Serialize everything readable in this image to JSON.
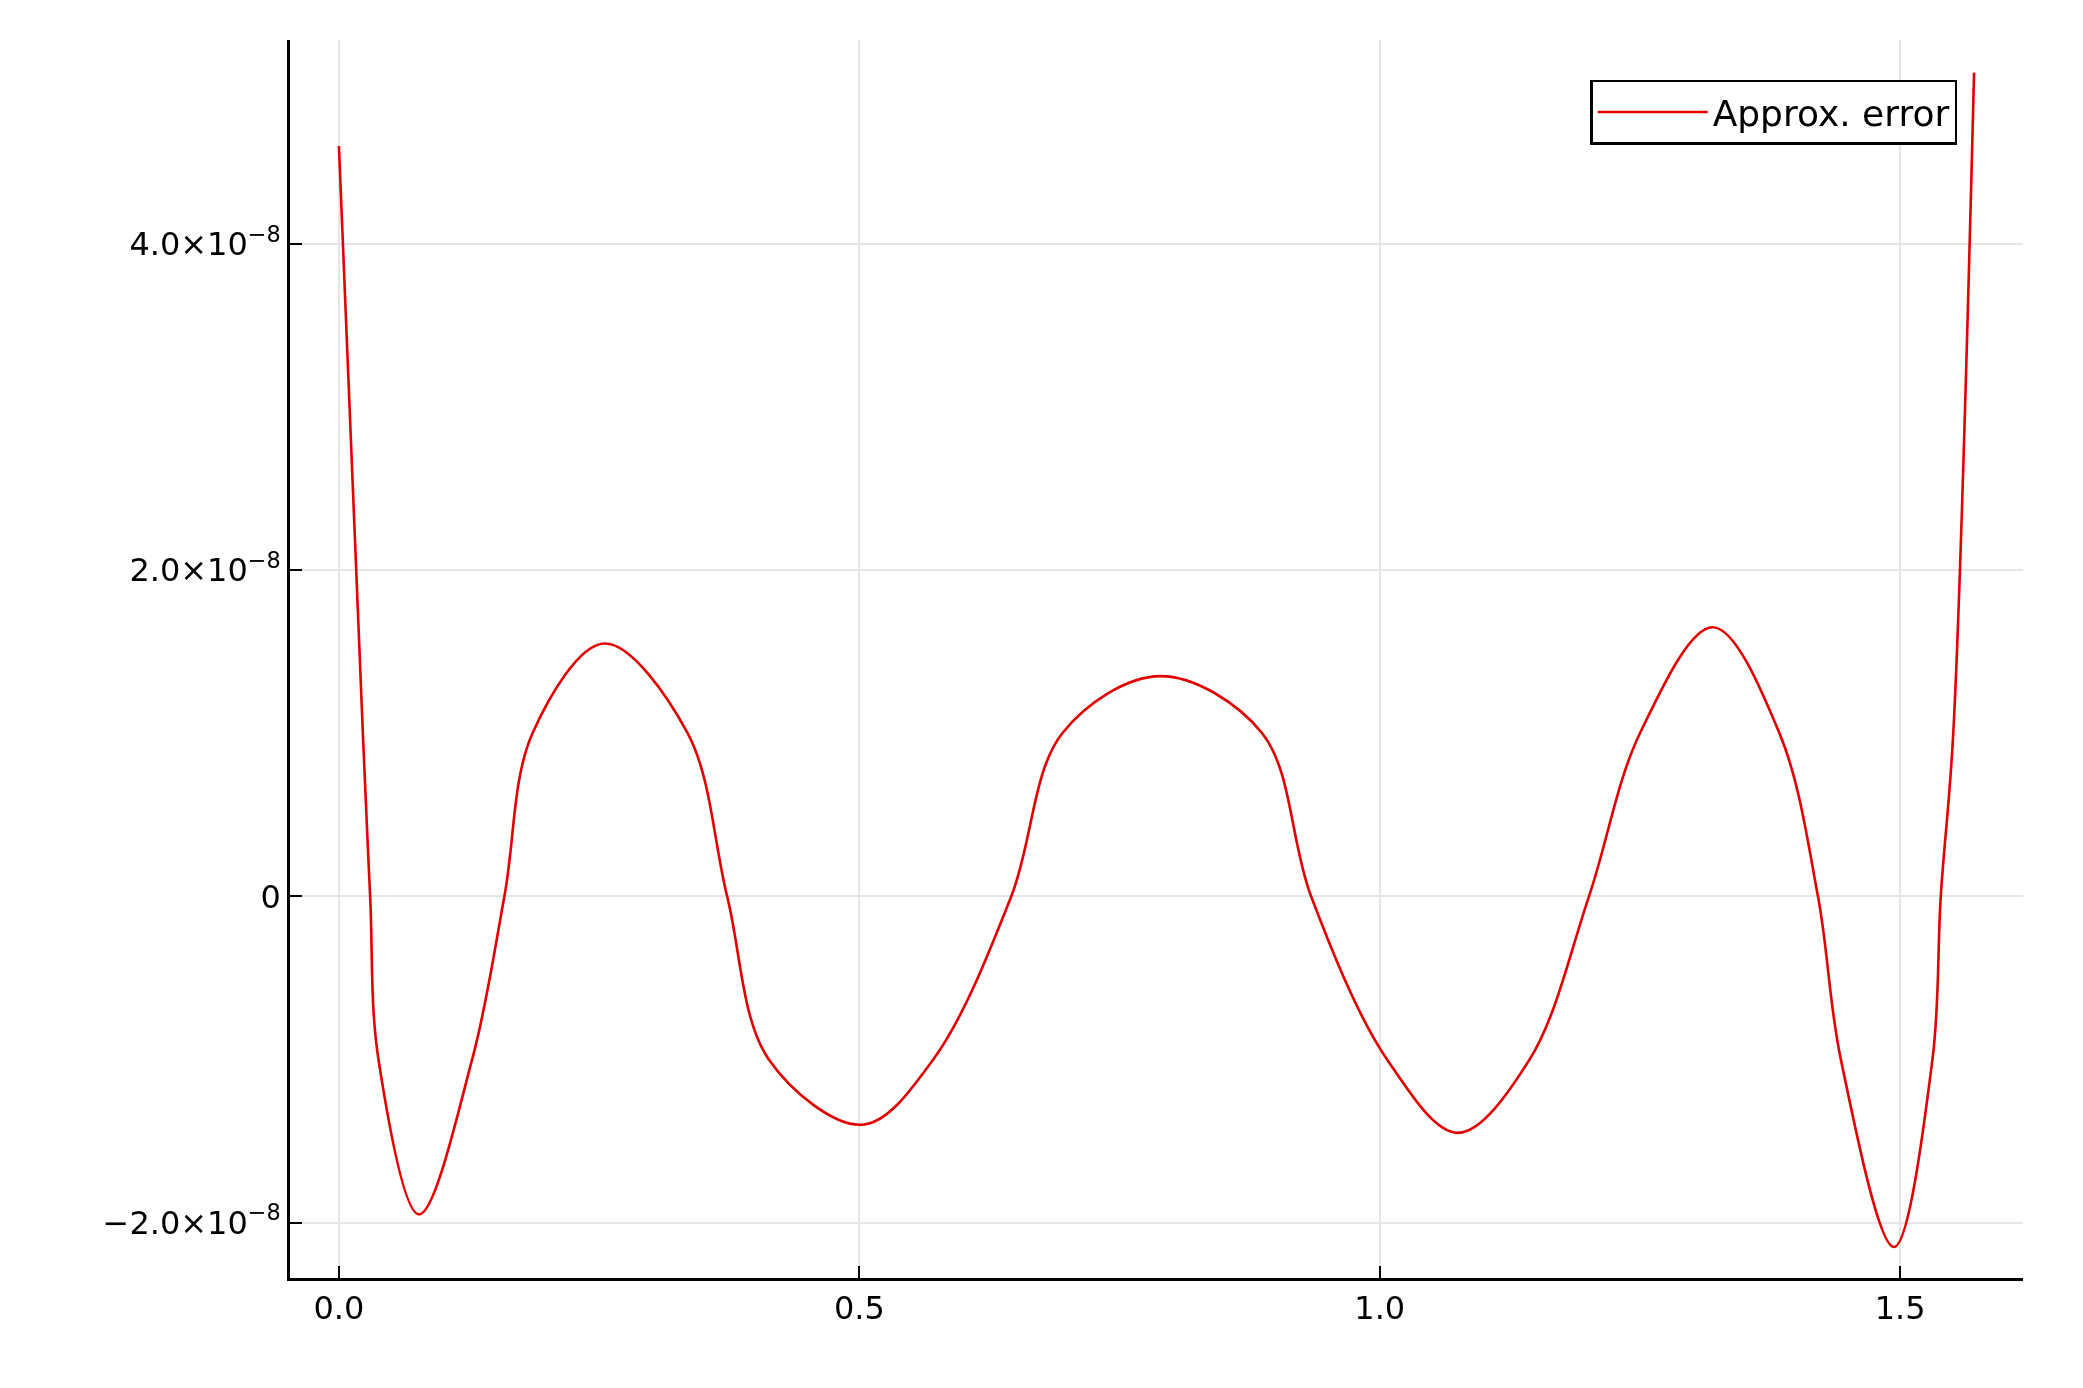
{
  "chart_data": {
    "type": "line",
    "x": [
      0,
      0.023,
      0.03,
      0.038,
      0.077,
      0.128,
      0.159,
      0.186,
      0.255,
      0.335,
      0.373,
      0.413,
      0.503,
      0.571,
      0.646,
      0.695,
      0.789,
      0.887,
      0.934,
      1.007,
      1.075,
      1.144,
      1.201,
      1.25,
      1.32,
      1.384,
      1.421,
      1.443,
      1.494,
      1.531,
      1.539,
      1.551,
      1.571
    ],
    "series": [
      {
        "name": "Approx. error",
        "color": "#e30000",
        "values": [
          4.6e-08,
          1e-08,
          0,
          -1e-08,
          -1.95e-08,
          -1e-08,
          0,
          1e-08,
          1.55e-08,
          1e-08,
          0,
          -1e-08,
          -1.4e-08,
          -1e-08,
          0,
          1e-08,
          1.35e-08,
          1e-08,
          0,
          -1e-08,
          -1.45e-08,
          -1e-08,
          0,
          1e-08,
          1.65e-08,
          1e-08,
          0,
          -1e-08,
          -2.15e-08,
          -1e-08,
          0,
          1e-08,
          5.05e-08
        ]
      }
    ],
    "xlim": [
      -0.047,
      1.618
    ],
    "ylim": [
      -2.34e-08,
      5.25e-08
    ],
    "xticks": [
      {
        "value": 0,
        "label": "0.0"
      },
      {
        "value": 0.5,
        "label": "0.5"
      },
      {
        "value": 1,
        "label": "1.0"
      },
      {
        "value": 1.5,
        "label": "1.5"
      }
    ],
    "yticks": [
      {
        "value": -2e-08,
        "label": "−2.0×10$^{−8}$"
      },
      {
        "value": 0,
        "label": "0"
      },
      {
        "value": 2e-08,
        "label": "2.0×10$^{−8}$"
      },
      {
        "value": 4e-08,
        "label": "4.0×10$^{−8}$"
      }
    ],
    "grid": true,
    "legend": "top right",
    "marker": "none",
    "line_style": "solid"
  }
}
